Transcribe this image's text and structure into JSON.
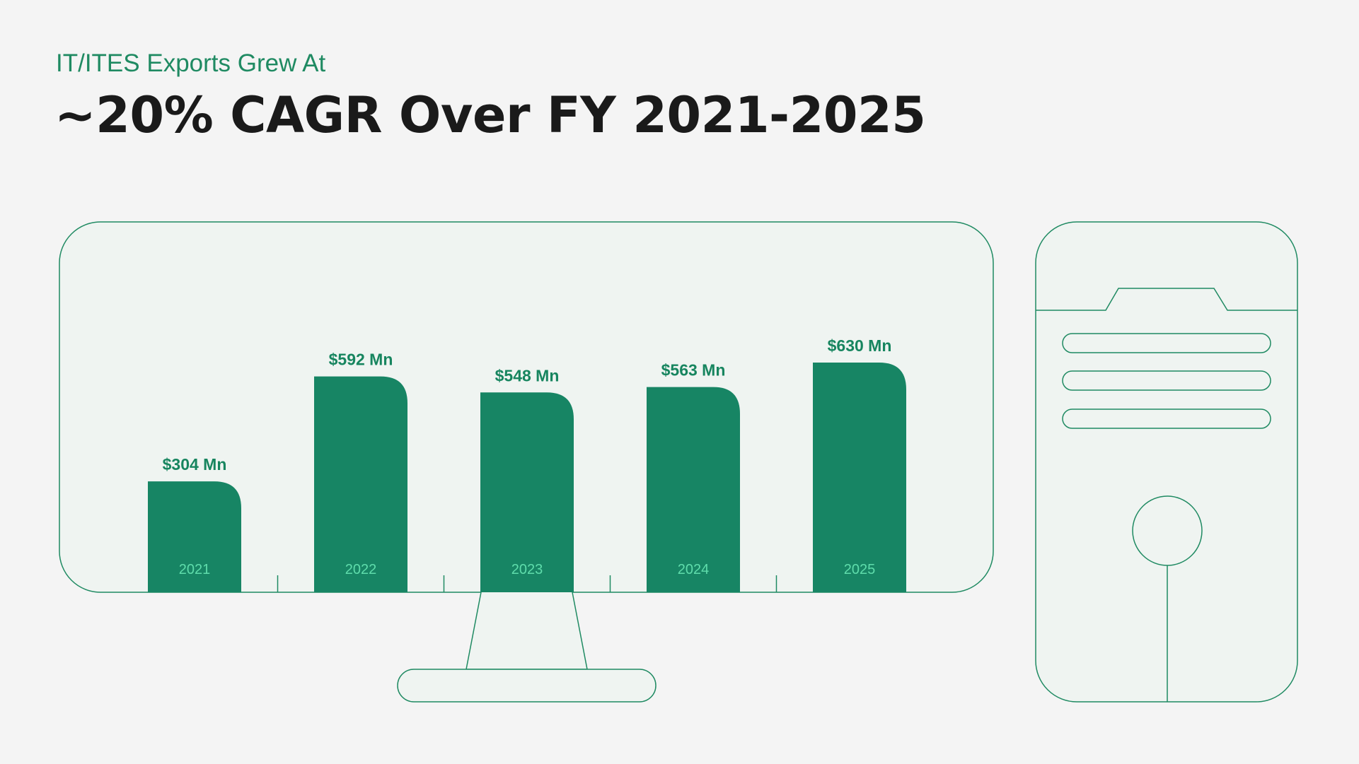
{
  "header": {
    "subtitle": "IT/ITES Exports Grew At",
    "title": "~20% CAGR Over FY 2021-2025"
  },
  "colors": {
    "bar": "#178564",
    "outline": "#1f8a62",
    "screen_fill": "#eff4f1",
    "value_text": "#17855f",
    "year_text": "#5fdcab"
  },
  "chart_data": {
    "type": "bar",
    "title": "~20% CAGR Over FY 2021-2025",
    "subtitle": "IT/ITES Exports Grew At",
    "categories": [
      "2021",
      "2022",
      "2023",
      "2024",
      "2025"
    ],
    "values": [
      304,
      592,
      548,
      563,
      630
    ],
    "value_labels": [
      "$304 Mn",
      "$592 Mn",
      "$548 Mn",
      "$563 Mn",
      "$630 Mn"
    ],
    "unit": "$ Mn",
    "xlabel": "",
    "ylabel": "",
    "ylim": [
      0,
      630
    ],
    "grid": false,
    "legend": "none"
  }
}
